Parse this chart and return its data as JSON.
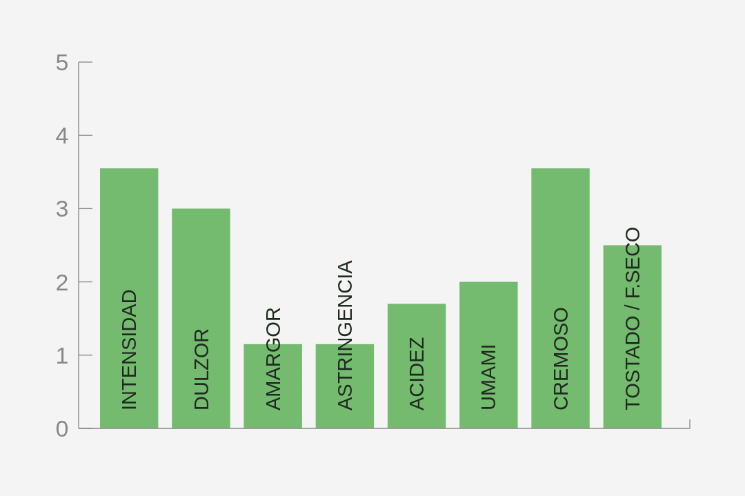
{
  "chart_data": {
    "type": "bar",
    "categories": [
      "INTENSIDAD",
      "DULZOR",
      "AMARGOR",
      "ASTRINGENCIA",
      "ACIDEZ",
      "UMAMI",
      "CREMOSO",
      "TOSTADO / F.SECO"
    ],
    "values": [
      3.55,
      3,
      1.15,
      1.15,
      1.7,
      2,
      3.55,
      2.5
    ],
    "color": "#74bb6f",
    "ylim": [
      0,
      5
    ],
    "yticks": [
      0,
      1,
      2,
      3,
      4,
      5
    ],
    "grid": false
  }
}
